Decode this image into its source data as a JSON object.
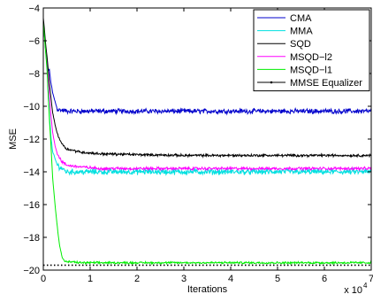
{
  "chart_data": {
    "type": "line",
    "title": "",
    "xlabel": "Iterations",
    "ylabel": "MSE",
    "x_multiplier_label": "x 10",
    "x_multiplier_exp": "4",
    "xlim": [
      0,
      7
    ],
    "ylim": [
      -20,
      -4
    ],
    "xticks": [
      0,
      1,
      2,
      3,
      4,
      5,
      6,
      7
    ],
    "yticks": [
      -20,
      -18,
      -16,
      -14,
      -12,
      -10,
      -8,
      -6,
      -4
    ],
    "xtick_labels": [
      "0",
      "1",
      "2",
      "3",
      "4",
      "5",
      "6",
      "7"
    ],
    "ytick_labels": [
      "−20",
      "−18",
      "−16",
      "−14",
      "−12",
      "−10",
      "−8",
      "−6",
      "−4"
    ],
    "grid": false,
    "legend_position": "top-right",
    "series": [
      {
        "name": "CMA",
        "color": "#0000cc",
        "style": "noisy",
        "x": [
          0,
          0.02,
          0.05,
          0.08,
          0.1,
          0.13,
          0.16,
          0.2,
          0.3,
          0.5,
          1.0,
          2.0,
          3.0,
          4.0,
          5.0,
          6.0,
          7.0
        ],
        "y": [
          -4.8,
          -5.5,
          -6.6,
          -7.4,
          -7.7,
          -7.8,
          -8.5,
          -9.2,
          -10.2,
          -10.3,
          -10.3,
          -10.3,
          -10.3,
          -10.3,
          -10.3,
          -10.3,
          -10.3
        ],
        "noise": 0.12
      },
      {
        "name": "MMA",
        "color": "#00e0e0",
        "style": "noisy",
        "x": [
          0,
          0.02,
          0.05,
          0.08,
          0.1,
          0.13,
          0.16,
          0.2,
          0.3,
          0.5,
          1.0,
          2.0,
          3.0,
          4.0,
          5.0,
          6.0,
          7.0
        ],
        "y": [
          -4.8,
          -5.5,
          -6.6,
          -7.6,
          -9.0,
          -10.5,
          -11.8,
          -12.8,
          -13.6,
          -14.0,
          -14.0,
          -14.0,
          -14.0,
          -14.0,
          -14.0,
          -14.0,
          -14.0
        ],
        "noise": 0.14
      },
      {
        "name": "SQD",
        "color": "#000000",
        "style": "noisy",
        "x": [
          0,
          0.02,
          0.05,
          0.08,
          0.1,
          0.13,
          0.16,
          0.2,
          0.25,
          0.3,
          0.4,
          0.5,
          0.8,
          1.2,
          2.0,
          3.0,
          4.0,
          5.0,
          6.0,
          7.0
        ],
        "y": [
          -4.6,
          -5.2,
          -6.2,
          -7.0,
          -7.6,
          -8.6,
          -9.4,
          -10.4,
          -11.1,
          -11.7,
          -12.3,
          -12.6,
          -12.8,
          -12.9,
          -12.95,
          -13.0,
          -13.0,
          -13.0,
          -13.0,
          -13.0
        ],
        "noise": 0.06
      },
      {
        "name": "MSQD−l2",
        "color": "#ff00ff",
        "style": "noisy",
        "x": [
          0,
          0.02,
          0.05,
          0.08,
          0.1,
          0.13,
          0.16,
          0.2,
          0.25,
          0.3,
          0.4,
          0.5,
          0.8,
          1.2,
          2.0,
          3.0,
          4.0,
          5.0,
          6.0,
          7.0
        ],
        "y": [
          -4.8,
          -5.5,
          -6.6,
          -7.6,
          -8.3,
          -9.4,
          -10.5,
          -11.6,
          -12.4,
          -12.9,
          -13.4,
          -13.6,
          -13.7,
          -13.8,
          -13.8,
          -13.8,
          -13.8,
          -13.8,
          -13.8,
          -13.8
        ],
        "noise": 0.07
      },
      {
        "name": "MSQD−l1",
        "color": "#00ee00",
        "style": "noisy",
        "x": [
          0,
          0.02,
          0.05,
          0.08,
          0.1,
          0.13,
          0.16,
          0.2,
          0.25,
          0.3,
          0.35,
          0.4,
          0.45,
          0.5,
          0.6,
          0.8,
          1.0,
          2.0,
          3.0,
          4.0,
          5.0,
          6.0,
          7.0
        ],
        "y": [
          -4.9,
          -5.6,
          -6.7,
          -7.8,
          -9.0,
          -10.8,
          -12.2,
          -14.4,
          -16.0,
          -17.4,
          -18.5,
          -19.2,
          -19.45,
          -19.5,
          -19.5,
          -19.55,
          -19.55,
          -19.55,
          -19.55,
          -19.55,
          -19.55,
          -19.55,
          -19.55
        ],
        "noise": 0.05
      },
      {
        "name": "MMSE Equalizer",
        "color": "#000000",
        "style": "dotted",
        "x": [
          0,
          7.0
        ],
        "y": [
          -19.7,
          -19.7
        ],
        "noise": 0
      }
    ]
  }
}
